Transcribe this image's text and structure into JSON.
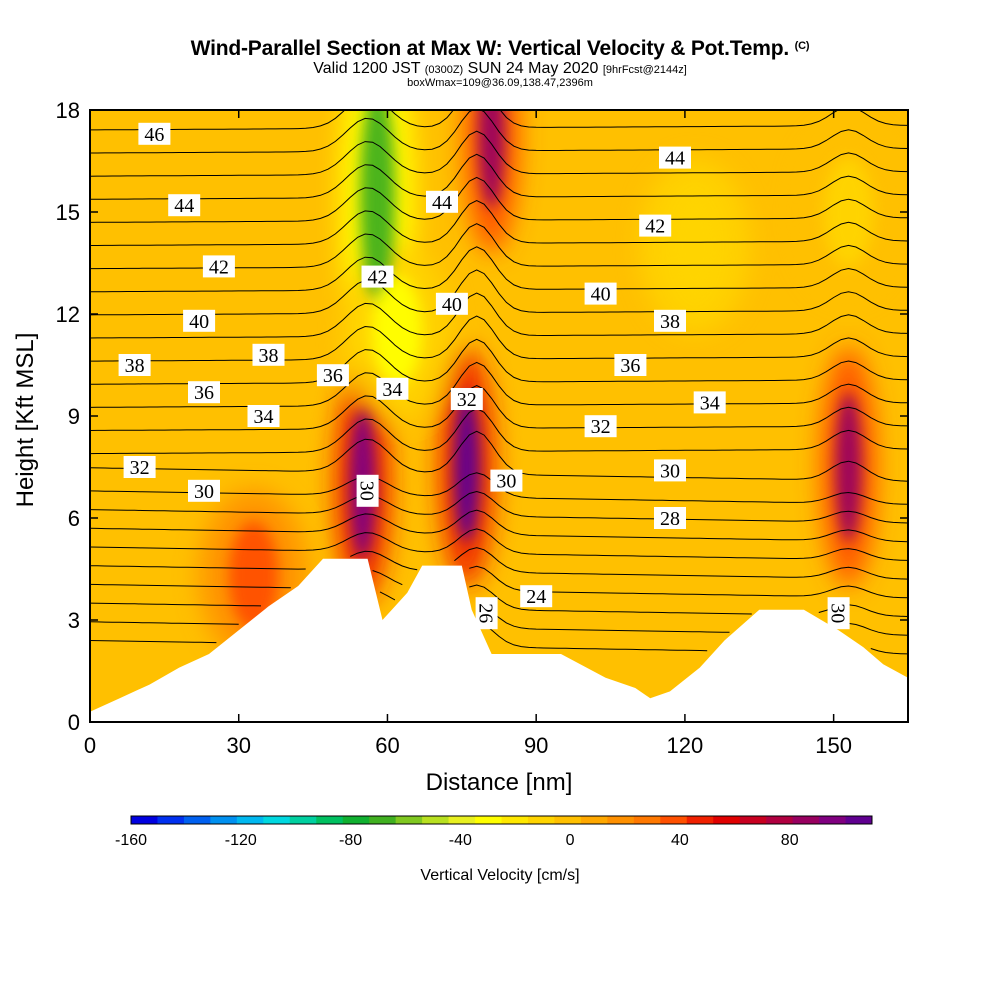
{
  "title": {
    "main": "Wind-Parallel Section at Max W: Vertical Velocity & Pot.Temp.",
    "copyright": "(C)",
    "valid_prefix": "Valid 1200 JST",
    "valid_z": "(0300Z)",
    "valid_date": "SUN 24 May 2020",
    "forecast": "[9hrFcst@2144z]",
    "box": "boxWmax=109@36.09,138.47,2396m"
  },
  "chart_data": {
    "type": "heatmap",
    "xlabel": "Distance [nm]",
    "ylabel": "Height [Kft MSL]",
    "xlim": [
      0,
      165
    ],
    "ylim": [
      0,
      18
    ],
    "x_ticks": [
      0,
      30,
      60,
      90,
      120,
      150
    ],
    "y_ticks": [
      0,
      3,
      6,
      9,
      12,
      15,
      18
    ],
    "colorbar": {
      "label": "Vertical Velocity [cm/s]",
      "range": [
        -160,
        110
      ],
      "tick_values": [
        -160,
        -120,
        -80,
        -40,
        0,
        40,
        80
      ],
      "colors": [
        "#0000e0",
        "#0030f0",
        "#0060f0",
        "#0090f0",
        "#00b8f0",
        "#00d8e0",
        "#00d0a0",
        "#00c060",
        "#10b030",
        "#40b020",
        "#80c820",
        "#b8e020",
        "#e8f020",
        "#ffff00",
        "#ffe800",
        "#ffd400",
        "#ffc000",
        "#ffa800",
        "#ff9000",
        "#ff7800",
        "#ff5000",
        "#f02000",
        "#e00000",
        "#c80020",
        "#b00040",
        "#980060",
        "#800080",
        "#600090"
      ]
    },
    "terrain_height_kft": [
      [
        0,
        0.3
      ],
      [
        6,
        0.7
      ],
      [
        12,
        1.1
      ],
      [
        18,
        1.6
      ],
      [
        24,
        2.0
      ],
      [
        30,
        2.7
      ],
      [
        36,
        3.4
      ],
      [
        42,
        4.0
      ],
      [
        47,
        4.8
      ],
      [
        56,
        4.8
      ],
      [
        59,
        3.0
      ],
      [
        64,
        3.8
      ],
      [
        67,
        4.6
      ],
      [
        75,
        4.6
      ],
      [
        77,
        3.3
      ],
      [
        81,
        2.0
      ],
      [
        95,
        2.0
      ],
      [
        104,
        1.3
      ],
      [
        110,
        1.0
      ],
      [
        113,
        0.7
      ],
      [
        117,
        0.9
      ],
      [
        123,
        1.6
      ],
      [
        128,
        2.4
      ],
      [
        135,
        3.3
      ],
      [
        144,
        3.3
      ],
      [
        151,
        2.7
      ],
      [
        156,
        2.2
      ],
      [
        160,
        1.7
      ],
      [
        165,
        1.3
      ]
    ],
    "vertical_velocity_cells": [
      {
        "x": 55,
        "y": 7.0,
        "value": 95
      },
      {
        "x": 76,
        "y": 7.5,
        "value": 105
      },
      {
        "x": 81,
        "y": 17.3,
        "value": 85
      },
      {
        "x": 153,
        "y": 7.5,
        "value": 90
      },
      {
        "x": 33,
        "y": 4.3,
        "value": 35
      },
      {
        "x": 58,
        "y": 15.5,
        "value": -70
      },
      {
        "x": 62,
        "y": 11.5,
        "value": -30
      },
      {
        "x": 122,
        "y": 14.0,
        "value": -15
      },
      {
        "x": 153,
        "y": 15.0,
        "value": -10
      }
    ],
    "pot_temp_contour_labels": [
      {
        "text": "46",
        "x": 13,
        "y": 17.3
      },
      {
        "text": "44",
        "x": 19,
        "y": 15.2
      },
      {
        "text": "44",
        "x": 71,
        "y": 15.3
      },
      {
        "text": "44",
        "x": 118,
        "y": 16.6
      },
      {
        "text": "42",
        "x": 26,
        "y": 13.4
      },
      {
        "text": "42",
        "x": 58,
        "y": 13.1
      },
      {
        "text": "42",
        "x": 114,
        "y": 14.6
      },
      {
        "text": "40",
        "x": 22,
        "y": 11.8
      },
      {
        "text": "40",
        "x": 73,
        "y": 12.3
      },
      {
        "text": "40",
        "x": 103,
        "y": 12.6
      },
      {
        "text": "38",
        "x": 9,
        "y": 10.5
      },
      {
        "text": "38",
        "x": 36,
        "y": 10.8
      },
      {
        "text": "38",
        "x": 117,
        "y": 11.8
      },
      {
        "text": "36",
        "x": 23,
        "y": 9.7
      },
      {
        "text": "36",
        "x": 49,
        "y": 10.2
      },
      {
        "text": "36",
        "x": 109,
        "y": 10.5
      },
      {
        "text": "34",
        "x": 35,
        "y": 9.0
      },
      {
        "text": "34",
        "x": 61,
        "y": 9.8
      },
      {
        "text": "34",
        "x": 125,
        "y": 9.4
      },
      {
        "text": "32",
        "x": 10,
        "y": 7.5
      },
      {
        "text": "32",
        "x": 76,
        "y": 9.5
      },
      {
        "text": "32",
        "x": 103,
        "y": 8.7
      },
      {
        "text": "30",
        "x": 23,
        "y": 6.8
      },
      {
        "text": "30",
        "x": 56,
        "y": 6.8
      },
      {
        "text": "30",
        "x": 84,
        "y": 7.1
      },
      {
        "text": "30",
        "x": 117,
        "y": 7.4
      },
      {
        "text": "30",
        "x": 151,
        "y": 3.2
      },
      {
        "text": "28",
        "x": 117,
        "y": 6.0
      },
      {
        "text": "26",
        "x": 80,
        "y": 3.2
      },
      {
        "text": "24",
        "x": 90,
        "y": 3.7
      }
    ]
  }
}
